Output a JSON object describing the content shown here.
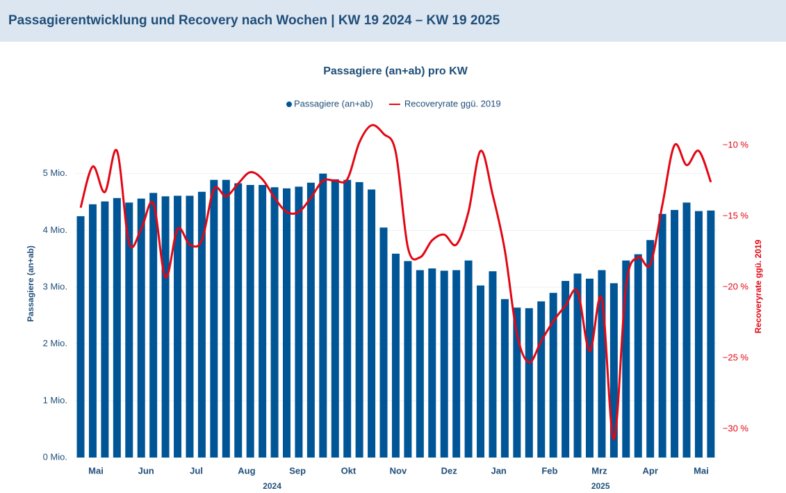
{
  "header": {
    "title": "Passagierentwicklung und Recovery nach Wochen | KW 19 2024 – KW 19 2025"
  },
  "chart_data": {
    "type": "bar-line",
    "title": "Passagiere (an+ab) pro KW",
    "y_label": "Passagiere (an+ab)",
    "y2_label": "Recoveryrate ggü. 2019",
    "categories": [
      null,
      null,
      null,
      null,
      null,
      null,
      null,
      null,
      null,
      null,
      null,
      null,
      null,
      null,
      null,
      null,
      null,
      null,
      null,
      null,
      null,
      null,
      null,
      null,
      null,
      null,
      null,
      null,
      null,
      null,
      null,
      null,
      null,
      null,
      null,
      null,
      null,
      null,
      null,
      null,
      null,
      null,
      null,
      null,
      null,
      null,
      null,
      null,
      null,
      null,
      null,
      null,
      null
    ],
    "series": [
      {
        "name": "Passagiere (an+ab)",
        "kind": "bar",
        "color": "#005596",
        "values": [
          4.25,
          4.46,
          4.51,
          4.57,
          4.49,
          4.56,
          4.66,
          4.6,
          4.61,
          4.61,
          4.68,
          4.89,
          4.89,
          4.83,
          4.8,
          4.8,
          4.76,
          4.74,
          4.77,
          4.84,
          5.0,
          4.9,
          4.89,
          4.85,
          4.72,
          4.05,
          3.59,
          3.46,
          3.3,
          3.33,
          3.29,
          3.3,
          3.47,
          3.03,
          3.28,
          2.79,
          2.64,
          2.63,
          2.75,
          2.9,
          3.11,
          3.24,
          3.15,
          3.3,
          3.07,
          3.47,
          3.58,
          3.83,
          4.29,
          4.36,
          4.49,
          4.34,
          4.35
        ]
      },
      {
        "name": "Recoveryrate ggü. 2019",
        "kind": "line",
        "axis": "y2",
        "color": "#e30613",
        "values": [
          -14.4,
          -11.5,
          -13.3,
          -10.4,
          -16.9,
          -15.9,
          -14.1,
          -19.3,
          -15.9,
          -17.0,
          -16.7,
          -13.1,
          -13.6,
          -12.7,
          -11.9,
          -12.4,
          -13.7,
          -14.7,
          -14.7,
          -13.7,
          -12.5,
          -12.5,
          -12.4,
          -9.8,
          -8.6,
          -9.2,
          -10.5,
          -17.2,
          -17.9,
          -16.7,
          -16.3,
          -17.0,
          -14.7,
          -10.4,
          -13.5,
          -17.4,
          -23.3,
          -25.3,
          -23.8,
          -22.4,
          -21.3,
          -20.3,
          -24.5,
          -20.8,
          -30.7,
          -19.9,
          -17.9,
          -18.4,
          -14.2,
          -10.0,
          -11.4,
          -10.4,
          -12.6
        ]
      }
    ],
    "ylim": [
      0,
      6
    ],
    "yticks": [
      {
        "value": 0,
        "label": "0 Mio."
      },
      {
        "value": 1,
        "label": "1 Mio."
      },
      {
        "value": 2,
        "label": "2 Mio."
      },
      {
        "value": 3,
        "label": "3 Mio."
      },
      {
        "value": 4,
        "label": "4 Mio."
      },
      {
        "value": 5,
        "label": "5 Mio."
      }
    ],
    "y2lim": [
      -32,
      -8
    ],
    "y2ticks": [
      {
        "value": -30,
        "label": "−30 %"
      },
      {
        "value": -25,
        "label": "−25 %"
      },
      {
        "value": -20,
        "label": "−20 %"
      },
      {
        "value": -15,
        "label": "−15 %"
      },
      {
        "value": -10,
        "label": "−10 %"
      }
    ],
    "xticks": [
      {
        "value": 1.26,
        "label": "Mai"
      },
      {
        "value": 5.4,
        "label": "Jun"
      },
      {
        "value": 9.55,
        "label": "Jul"
      },
      {
        "value": 13.7,
        "label": "Aug"
      },
      {
        "value": 17.9,
        "label": "Sep"
      },
      {
        "value": 22.1,
        "label": "Okt"
      },
      {
        "value": 26.2,
        "label": "Nov"
      },
      {
        "value": 30.4,
        "label": "Dez"
      },
      {
        "value": 34.5,
        "label": "Jan"
      },
      {
        "value": 38.7,
        "label": "Feb"
      },
      {
        "value": 42.8,
        "label": "Mrz"
      },
      {
        "value": 47.0,
        "label": "Apr"
      },
      {
        "value": 51.2,
        "label": "Mai"
      }
    ],
    "year_ticks": [
      {
        "value": 15.8,
        "label": "2024"
      },
      {
        "value": 42.9,
        "label": "2025"
      }
    ],
    "grid": true
  }
}
